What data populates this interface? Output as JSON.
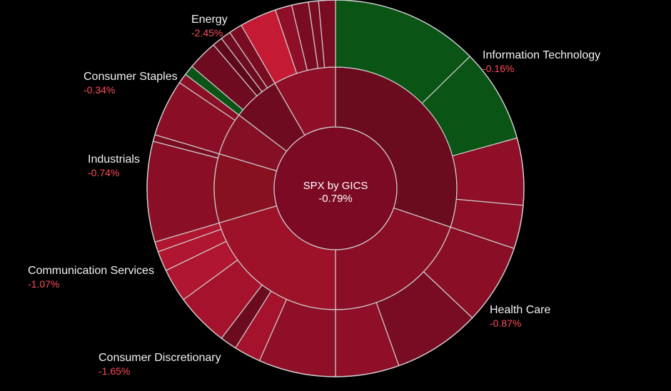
{
  "chart_data": {
    "type": "sunburst",
    "center": {
      "title": "SPX by GICS",
      "change": "-0.79%"
    },
    "sectors": [
      {
        "name": "Information Technology",
        "change": "-0.16%",
        "color": "#6a0b1e",
        "children": [
          {
            "span": 44,
            "color": "#0a5415"
          },
          {
            "span": 28,
            "color": "#0a5415"
          },
          {
            "span": 20,
            "color": "#8e0f27"
          },
          {
            "span": 13,
            "color": "#8e0f27"
          }
        ]
      },
      {
        "name": "Health Care",
        "change": "-0.87%",
        "color": "#8a0f26",
        "children": [
          {
            "span": 24,
            "color": "#8a0f26"
          },
          {
            "span": 26,
            "color": "#780c22"
          },
          {
            "span": 19,
            "color": "#8e0f27"
          }
        ]
      },
      {
        "name": "Consumer Discretionary",
        "change": "-1.65%",
        "color": "#9d1229",
        "children": [
          {
            "span": 23,
            "color": "#8e0f27"
          },
          {
            "span": 8,
            "color": "#a5122b"
          },
          {
            "span": 5,
            "color": "#6a0b1e"
          },
          {
            "span": 16,
            "color": "#a5122b"
          },
          {
            "span": 10,
            "color": "#b0162f"
          },
          {
            "span": 6,
            "color": "#b0162f"
          },
          {
            "span": 3,
            "color": "#b0162f"
          }
        ]
      },
      {
        "name": "Communication Services",
        "change": "-1.07%",
        "color": "#87111f",
        "children": [
          {
            "span": 30,
            "color": "#8a0f26"
          },
          {
            "span": 2,
            "color": "#7a0c22"
          }
        ]
      },
      {
        "name": "Industrials",
        "change": "-0.74%",
        "color": "#851026",
        "children": [
          {
            "span": 17,
            "color": "#8a0f26"
          },
          {
            "span": 3,
            "color": "#8a0f26"
          }
        ]
      },
      {
        "name": "Consumer Staples",
        "change": "-0.34%",
        "color": "#6f0b20",
        "children": [
          {
            "span": 3,
            "color": "#0a5415"
          },
          {
            "span": 9,
            "color": "#6f0b20"
          },
          {
            "span": 3,
            "color": "#5e091a"
          },
          {
            "span": 3,
            "color": "#6f0b20"
          },
          {
            "span": 4,
            "color": "#7a0c22"
          }
        ]
      },
      {
        "name": "Energy",
        "change": "-2.45%",
        "color": "#8e0f27",
        "children": [
          {
            "span": 11,
            "color": "#c41a33"
          },
          {
            "span": 5,
            "color": "#8e0f27"
          },
          {
            "span": 5,
            "color": "#7a0c22"
          },
          {
            "span": 3,
            "color": "#7a0c22"
          },
          {
            "span": 5,
            "color": "#7a0c22"
          }
        ]
      }
    ]
  },
  "colors": {
    "background": "#000000",
    "positive_text": "#f2f2f2",
    "negative_text": "#ff4d5a",
    "separator": "#cfcfcf"
  }
}
